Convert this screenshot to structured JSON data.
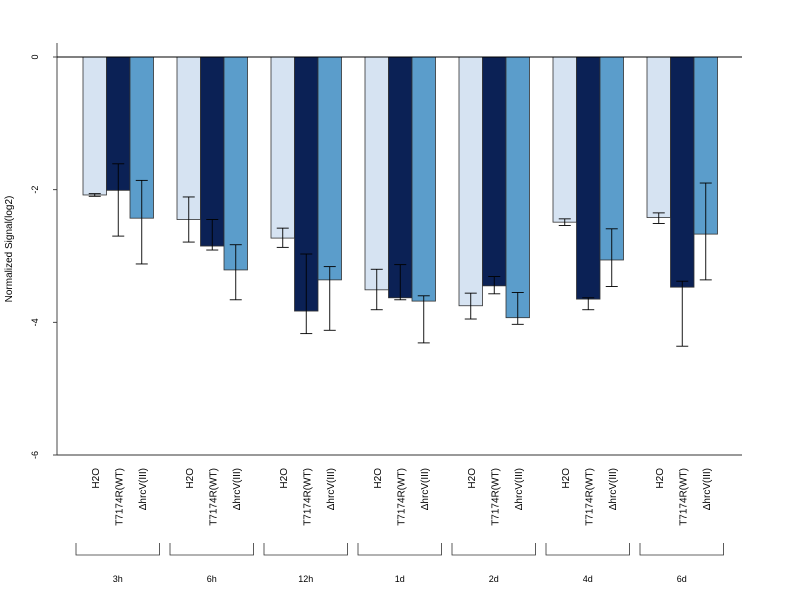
{
  "chart_data": {
    "type": "bar",
    "title": "",
    "xlabel": "",
    "ylabel": "Normalized Signal(log2)",
    "ylim": [
      -6,
      0.2
    ],
    "yticks": [
      0,
      -2,
      -4,
      -6
    ],
    "ytick_labels": [
      "0",
      "-2",
      "-4",
      "-6"
    ],
    "grid": false,
    "legend": "none",
    "series_order": [
      "H2O",
      "T7174R(WT)",
      "ΔhrcV(III)"
    ],
    "groups": [
      {
        "label": "3h",
        "bars": [
          {
            "name": "H2O",
            "value": -2.08,
            "err_low": -2.1,
            "err_high": -2.06
          },
          {
            "name": "T7174R(WT)",
            "value": -2.01,
            "err_low": -2.7,
            "err_high": -1.61
          },
          {
            "name": "ΔhrcV(III)",
            "value": -2.43,
            "err_low": -3.12,
            "err_high": -1.86
          }
        ]
      },
      {
        "label": "6h",
        "bars": [
          {
            "name": "H2O",
            "value": -2.45,
            "err_low": -2.79,
            "err_high": -2.11
          },
          {
            "name": "T7174R(WT)",
            "value": -2.85,
            "err_low": -2.91,
            "err_high": -2.45
          },
          {
            "name": "ΔhrcV(III)",
            "value": -3.21,
            "err_low": -3.66,
            "err_high": -2.83
          }
        ]
      },
      {
        "label": "12h",
        "bars": [
          {
            "name": "H2O",
            "value": -2.73,
            "err_low": -2.87,
            "err_high": -2.58
          },
          {
            "name": "T7174R(WT)",
            "value": -3.83,
            "err_low": -4.17,
            "err_high": -2.97
          },
          {
            "name": "ΔhrcV(III)",
            "value": -3.36,
            "err_low": -4.12,
            "err_high": -3.16
          }
        ]
      },
      {
        "label": "1d",
        "bars": [
          {
            "name": "H2O",
            "value": -3.51,
            "err_low": -3.81,
            "err_high": -3.2
          },
          {
            "name": "T7174R(WT)",
            "value": -3.63,
            "err_low": -3.66,
            "err_high": -3.13
          },
          {
            "name": "ΔhrcV(III)",
            "value": -3.68,
            "err_low": -4.31,
            "err_high": -3.6
          }
        ]
      },
      {
        "label": "2d",
        "bars": [
          {
            "name": "H2O",
            "value": -3.75,
            "err_low": -3.95,
            "err_high": -3.56
          },
          {
            "name": "T7174R(WT)",
            "value": -3.45,
            "err_low": -3.57,
            "err_high": -3.31
          },
          {
            "name": "ΔhrcV(III)",
            "value": -3.93,
            "err_low": -4.03,
            "err_high": -3.55
          }
        ]
      },
      {
        "label": "4d",
        "bars": [
          {
            "name": "H2O",
            "value": -2.49,
            "err_low": -2.54,
            "err_high": -2.44
          },
          {
            "name": "T7174R(WT)",
            "value": -3.65,
            "err_low": -3.81,
            "err_high": -3.63
          },
          {
            "name": "ΔhrcV(III)",
            "value": -3.06,
            "err_low": -3.46,
            "err_high": -2.59
          }
        ]
      },
      {
        "label": "6d",
        "bars": [
          {
            "name": "H2O",
            "value": -2.42,
            "err_low": -2.51,
            "err_high": -2.35
          },
          {
            "name": "T7174R(WT)",
            "value": -3.47,
            "err_low": -4.36,
            "err_high": -3.38
          },
          {
            "name": "ΔhrcV(III)",
            "value": -2.67,
            "err_low": -3.36,
            "err_high": -1.9
          }
        ]
      }
    ],
    "colors": {
      "H2O": "#d6e3f2",
      "T7174R(WT)": "#0b2155",
      "ΔhrcV(III)": "#5b9dcb",
      "outline": "#333333",
      "error_bar": "#000000"
    }
  }
}
